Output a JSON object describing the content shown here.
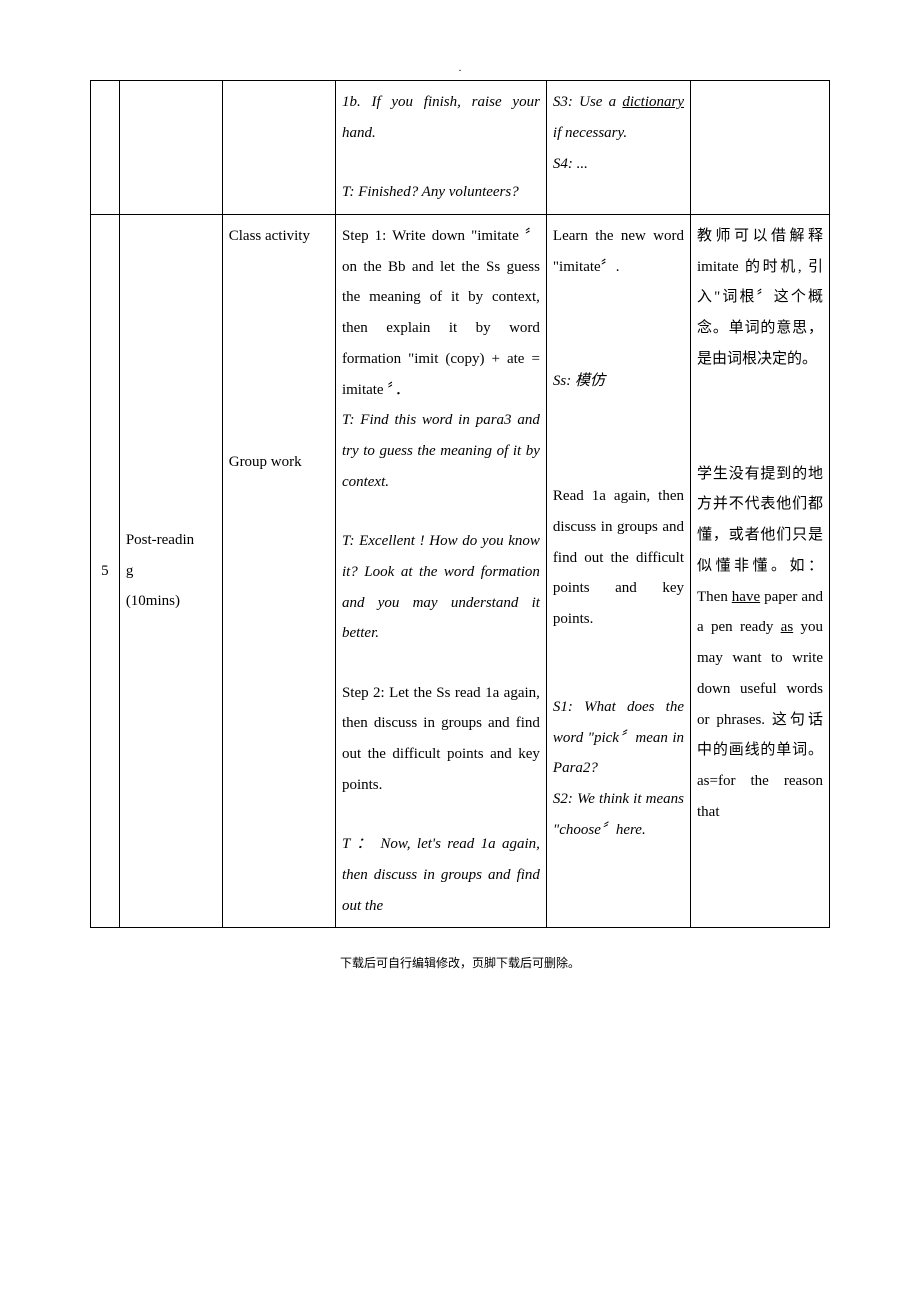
{
  "header_dot": ".",
  "footer": "下载后可自行编辑修改，页脚下载后可删除。",
  "row1": {
    "teacher_1": "1b. If you finish, raise your hand.",
    "teacher_2": "T: Finished? Any volunteers?",
    "student_1a": "S3: Use a ",
    "student_1b": "dictionary",
    "student_1c": " if necessary.",
    "student_2": "S4: ..."
  },
  "row2": {
    "idx": "5",
    "stage_1": "Post-readin",
    "stage_2": "g",
    "stage_3": "(10mins)",
    "act_1": "Class activity",
    "act_2": "Group work",
    "teacher_step1": "Step 1: Write down \"imitate 〞 on the Bb and let the Ss guess the meaning of it by context, then explain it by word formation \"imit (copy) + ate = imitate 〞．",
    "teacher_t1": "T: Find this word in para3 and try to guess the meaning of it by context.",
    "teacher_t2": "T: Excellent ! How do you know it?   Look at the word formation and you may understand it better.",
    "teacher_step2": "Step 2: Let the Ss read 1a again, then discuss in groups and find out the difficult points and key points.",
    "teacher_t3": "T ： Now, let's read 1a again, then discuss in groups and find out the",
    "student_learn": "Learn the new word \"imitate〞.",
    "student_ss": "Ss: 模仿",
    "student_read": "Read 1a again, then discuss in groups and find out the difficult points and key points.",
    "student_s1": "S1: What does the word \"pick〞mean in Para2?",
    "student_s2": "S2: We think it means \"choose〞here.",
    "note_1": "教师可以借解释 imitate 的时机, 引入\"词根〞这个概念。单词的意思，是由词根决定的。",
    "note_2a": "学生没有提到的地方并不代表他们都懂，或者他们只是似懂非懂。如：Then ",
    "note_2b": "have",
    "note_2c": " paper and a pen ready ",
    "note_2d": "as",
    "note_2e": " you may want to write down useful words or phrases. 这句话中的画线的单词。as=for the reason that"
  }
}
